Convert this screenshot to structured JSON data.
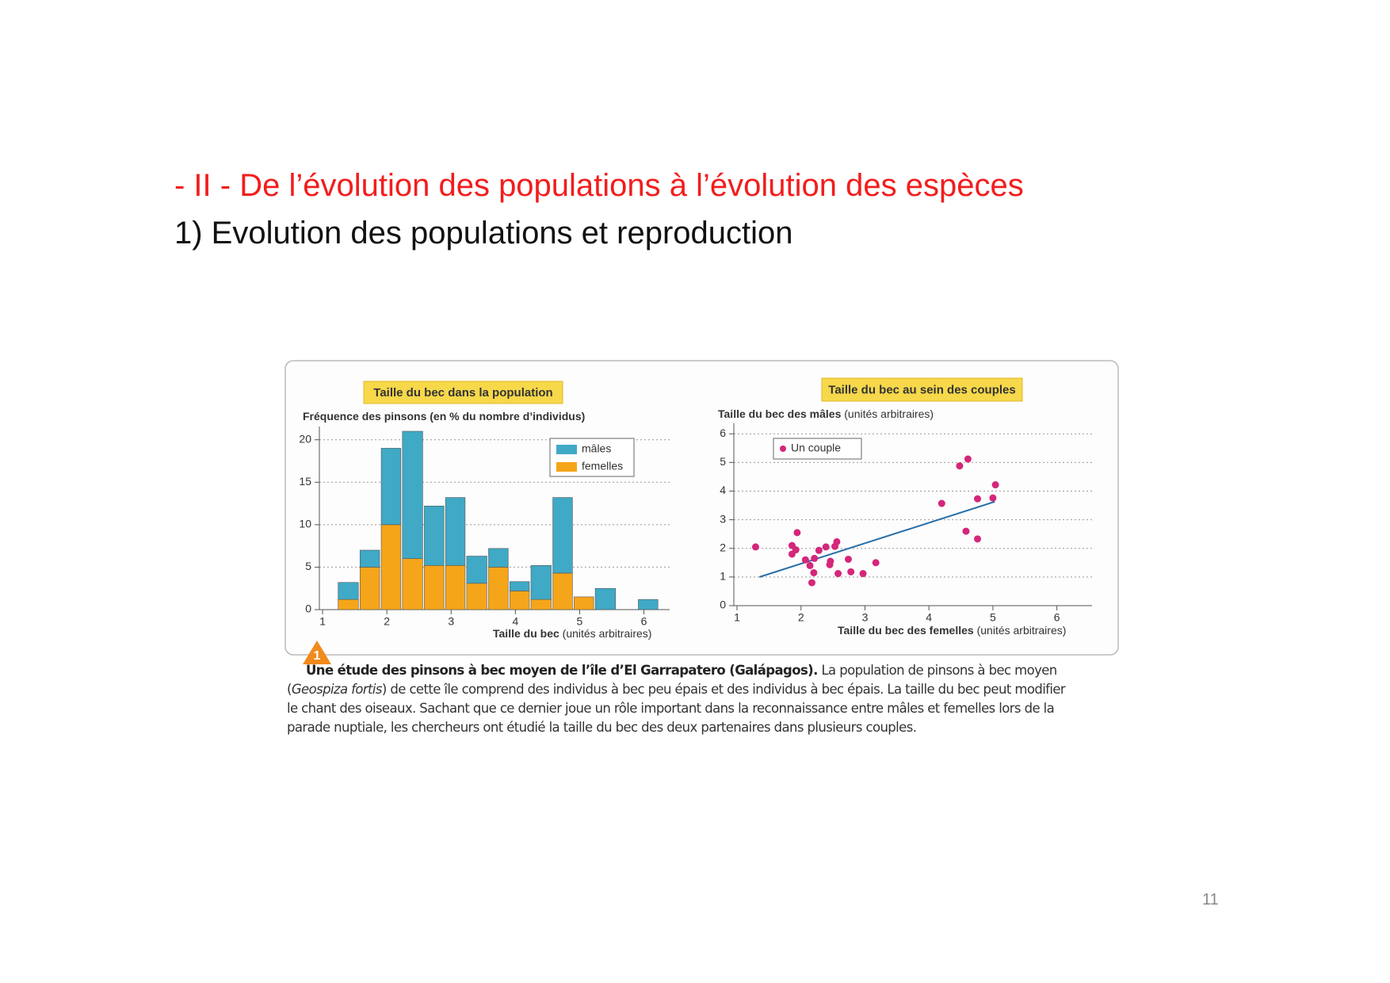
{
  "header": {
    "title": "- II - De l’évolution des populations à l’évolution des espèces",
    "subtitle": "1) Evolution des populations et reproduction"
  },
  "chart_data": [
    {
      "type": "histogram",
      "title": "Taille du bec dans la population",
      "y_label": "Fréquence des pinsons (en % du nombre d’individus)",
      "x_label": "Taille du bec",
      "x_unit": "(unités arbitraires)",
      "bins": [
        1.23,
        1.57,
        1.9,
        2.23,
        2.57,
        2.9,
        3.23,
        3.57,
        3.9,
        4.23,
        4.57,
        4.9,
        5.23,
        5.57,
        5.9,
        6.23
      ],
      "stacked": true,
      "series": [
        {
          "name": "femelles",
          "color": "#f5a519",
          "values": [
            1.2,
            5,
            10,
            6,
            5.2,
            5.2,
            3.1,
            5,
            2.2,
            1.2,
            4.3,
            1.5,
            0,
            0,
            0
          ]
        },
        {
          "name": "mâles",
          "color": "#3fa9c6",
          "values": [
            2,
            2,
            9,
            15,
            7,
            8,
            3.2,
            2.2,
            1.1,
            4,
            8.9,
            0,
            2.5,
            0,
            1.2
          ]
        }
      ],
      "xlim": [
        0.95,
        6.4
      ],
      "xticks": [
        1,
        2,
        3,
        4,
        5,
        6
      ],
      "ylim": [
        0,
        21
      ],
      "yticks": [
        0,
        5,
        10,
        15,
        20
      ],
      "grid": true,
      "legend": "top-right"
    },
    {
      "type": "scatter",
      "title": "Taille du bec au sein des couples",
      "y_label": "Taille du bec des mâles",
      "y_unit": "(unités arbitraires)",
      "x_label": "Taille du bec des femelles",
      "x_unit": "(unités arbitraires)",
      "series": [
        {
          "name": "Un couple",
          "color": "#d4267a",
          "x": [
            1.29,
            1.86,
            1.92,
            1.86,
            1.94,
            2.07,
            2.14,
            2.2,
            2.17,
            2.21,
            2.28,
            2.39,
            2.45,
            2.46,
            2.53,
            2.56,
            2.58,
            2.74,
            2.78,
            2.97,
            3.17,
            4.2,
            4.48,
            4.61,
            4.58,
            4.76,
            4.76,
            5.0,
            5.04
          ],
          "y": [
            2.05,
            2.1,
            1.95,
            1.8,
            2.55,
            1.6,
            1.4,
            1.15,
            0.8,
            1.65,
            1.93,
            2.05,
            1.43,
            1.55,
            2.07,
            2.23,
            1.12,
            1.62,
            1.18,
            1.12,
            1.5,
            3.57,
            4.88,
            5.12,
            2.6,
            2.33,
            3.73,
            3.76,
            4.22
          ]
        }
      ],
      "trendline": {
        "color": "#2a6fa8",
        "x": [
          1.35,
          5.03
        ],
        "y": [
          1.0,
          3.63
        ]
      },
      "xlim": [
        0.95,
        6.55
      ],
      "xticks": [
        1,
        2,
        3,
        4,
        5,
        6
      ],
      "ylim": [
        0,
        6.2
      ],
      "yticks": [
        0,
        1,
        2,
        3,
        4,
        5,
        6
      ],
      "grid": true,
      "legend": "top-left"
    }
  ],
  "caption": {
    "number": "1",
    "title": "Une étude des pinsons à bec moyen de l’île d’El Garrapatero (Galápagos).",
    "text_1": "La population de pinsons à bec moyen (",
    "species": "Geospiza fortis",
    "text_2": ") de cette île comprend des individus à bec peu épais et des individus à bec épais. La taille du bec peut modifier le chant des oiseaux. Sachant que ce dernier joue un rôle important dans la reconnaissance entre mâles et femelles lors de la parade nuptiale, les chercheurs ont étudié la taille du bec des deux partenaires dans plusieurs couples."
  },
  "page_number": "11"
}
